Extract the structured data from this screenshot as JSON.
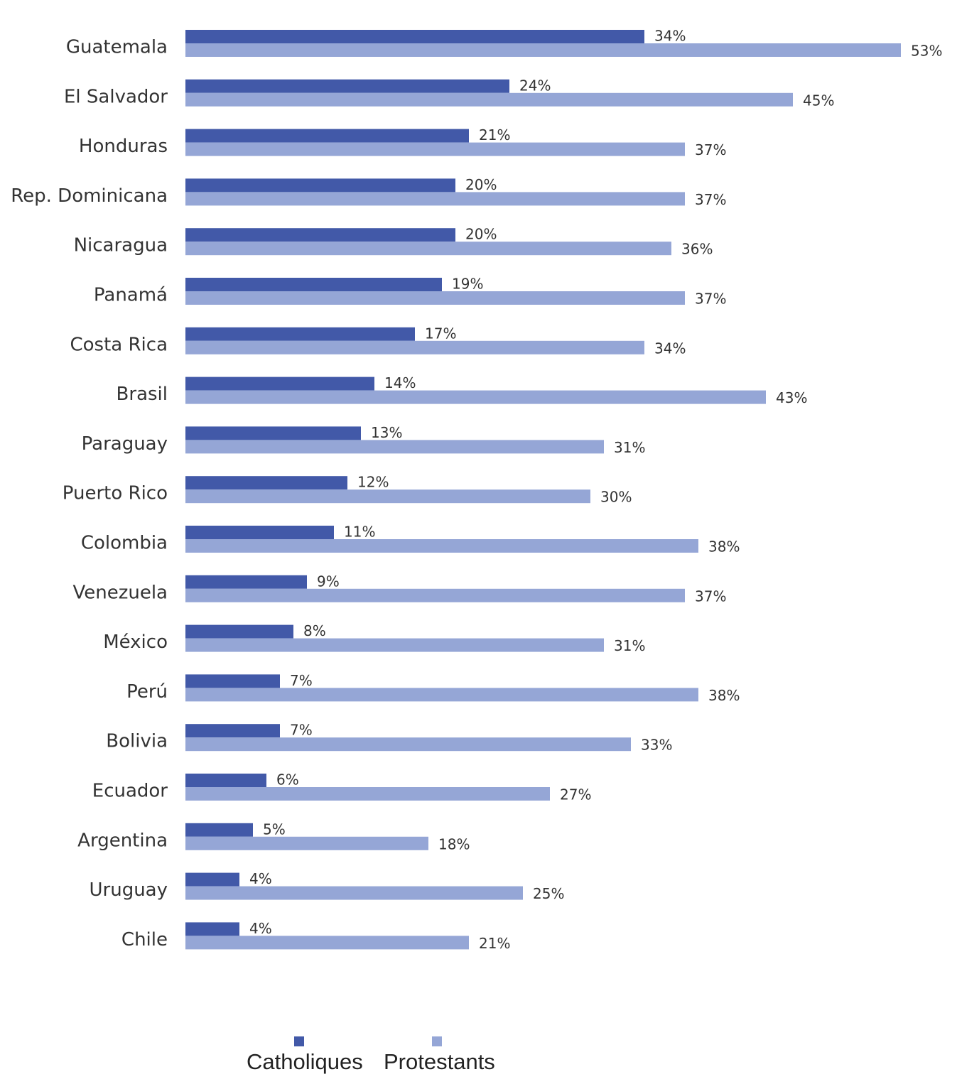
{
  "chart_data": {
    "type": "bar",
    "orientation": "horizontal",
    "categories": [
      "Guatemala",
      "El Salvador",
      "Honduras",
      "Rep. Dominicana",
      "Nicaragua",
      "Panamá",
      "Costa Rica",
      "Brasil",
      "Paraguay",
      "Puerto Rico",
      "Colombia",
      "Venezuela",
      "México",
      "Perú",
      "Bolivia",
      "Ecuador",
      "Argentina",
      "Uruguay",
      "Chile"
    ],
    "series": [
      {
        "name": "Catholiques",
        "color": "#4259a8",
        "values": [
          34,
          24,
          21,
          20,
          20,
          19,
          17,
          14,
          13,
          12,
          11,
          9,
          8,
          7,
          7,
          6,
          5,
          4,
          4
        ],
        "labels": [
          "34%",
          "24%",
          "21%",
          "20%",
          "20%",
          "19%",
          "17%",
          "14%",
          "13%",
          "12%",
          "11%",
          "9%",
          "8%",
          "7%",
          "7%",
          "6%",
          "5%",
          "4%",
          "4%"
        ]
      },
      {
        "name": "Protestants",
        "color": "#95a6d6",
        "values": [
          53,
          45,
          37,
          37,
          36,
          37,
          34,
          43,
          31,
          30,
          38,
          37,
          31,
          38,
          33,
          27,
          18,
          25,
          21
        ],
        "labels": [
          "53%",
          "45%",
          "37%",
          "37%",
          "36%",
          "37%",
          "34%",
          "43%",
          "31%",
          "30%",
          "38%",
          "37%",
          "31%",
          "38%",
          "33%",
          "27%",
          "18%",
          "25%",
          "21%"
        ]
      }
    ],
    "xlim": [
      0,
      53
    ],
    "grid": false,
    "legend": "bottom",
    "title": "",
    "xlabel": "",
    "ylabel": ""
  }
}
